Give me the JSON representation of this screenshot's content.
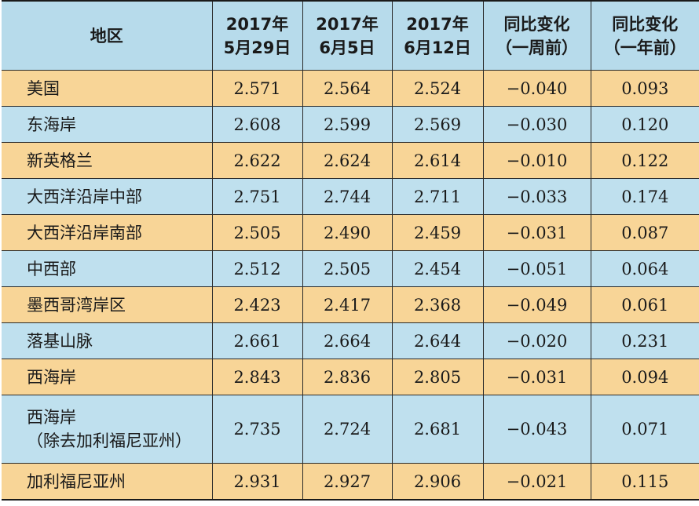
{
  "chart_data": {
    "type": "table",
    "columns": [
      {
        "lines": [
          "地区"
        ]
      },
      {
        "lines": [
          "2017年",
          "5月29日"
        ]
      },
      {
        "lines": [
          "2017年",
          "6月5日"
        ]
      },
      {
        "lines": [
          "2017年",
          "6月12日"
        ]
      },
      {
        "lines": [
          "同比变化",
          "（一周前）"
        ]
      },
      {
        "lines": [
          "同比变化",
          "（一年前）"
        ]
      }
    ],
    "rows": [
      {
        "region": [
          "美国"
        ],
        "values": [
          "2.571",
          "2.564",
          "2.524",
          "−0.040",
          "0.093"
        ]
      },
      {
        "region": [
          "东海岸"
        ],
        "values": [
          "2.608",
          "2.599",
          "2.569",
          "−0.030",
          "0.120"
        ]
      },
      {
        "region": [
          "新英格兰"
        ],
        "values": [
          "2.622",
          "2.624",
          "2.614",
          "−0.010",
          "0.122"
        ]
      },
      {
        "region": [
          "大西洋沿岸中部"
        ],
        "values": [
          "2.751",
          "2.744",
          "2.711",
          "−0.033",
          "0.174"
        ]
      },
      {
        "region": [
          "大西洋沿岸南部"
        ],
        "values": [
          "2.505",
          "2.490",
          "2.459",
          "−0.031",
          "0.087"
        ]
      },
      {
        "region": [
          "中西部"
        ],
        "values": [
          "2.512",
          "2.505",
          "2.454",
          "−0.051",
          "0.064"
        ]
      },
      {
        "region": [
          "墨西哥湾岸区"
        ],
        "values": [
          "2.423",
          "2.417",
          "2.368",
          "−0.049",
          "0.061"
        ]
      },
      {
        "region": [
          "落基山脉"
        ],
        "values": [
          "2.661",
          "2.664",
          "2.644",
          "−0.020",
          "0.231"
        ]
      },
      {
        "region": [
          "西海岸"
        ],
        "values": [
          "2.843",
          "2.836",
          "2.805",
          "−0.031",
          "0.094"
        ]
      },
      {
        "region": [
          "西海岸",
          "（除去加利福尼亚州）"
        ],
        "values": [
          "2.735",
          "2.724",
          "2.681",
          "−0.043",
          "0.071"
        ]
      },
      {
        "region": [
          "加利福尼亚州"
        ],
        "values": [
          "2.931",
          "2.927",
          "2.906",
          "−0.021",
          "0.115"
        ]
      }
    ]
  },
  "colors": {
    "header_bg": "#b7dbeb",
    "row_orange": "#f8d597",
    "row_blue": "#bfe0ee",
    "border": "#2a2a2a"
  }
}
